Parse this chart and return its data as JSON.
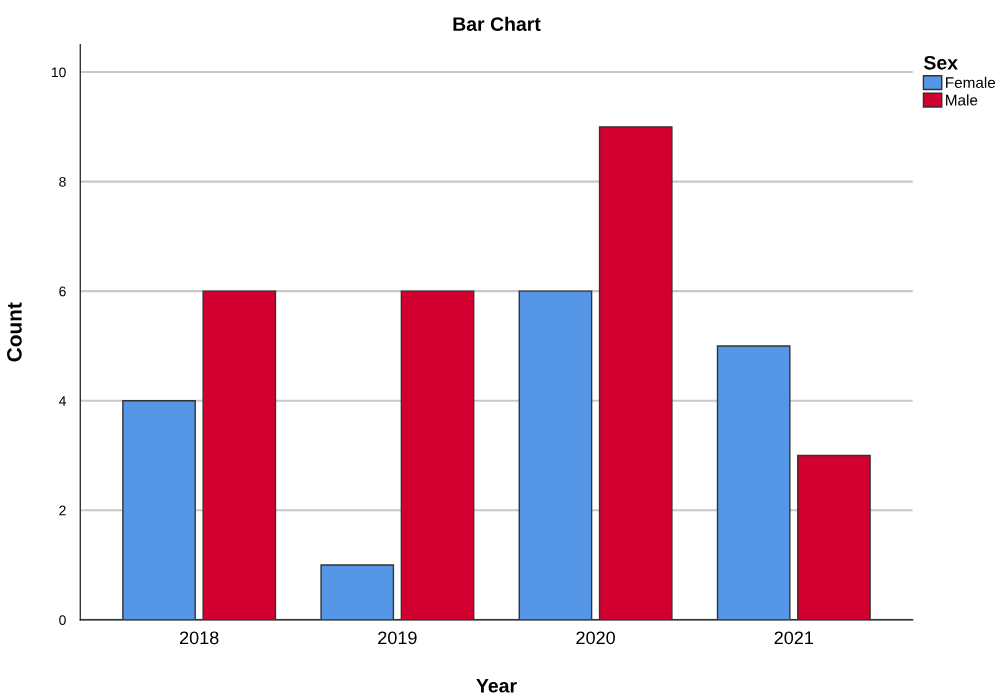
{
  "chart_data": {
    "type": "bar",
    "title": "Bar Chart",
    "xlabel": "Year",
    "ylabel": "Count",
    "legend_title": "Sex",
    "categories": [
      "2018",
      "2019",
      "2020",
      "2021"
    ],
    "series": [
      {
        "name": "Female",
        "color": "#5596e6",
        "values": [
          4,
          1,
          6,
          5
        ]
      },
      {
        "name": "Male",
        "color": "#d10031",
        "values": [
          6,
          6,
          9,
          3
        ]
      }
    ],
    "ylim": [
      0,
      10.5
    ],
    "yticks": [
      0,
      2,
      4,
      6,
      8,
      10
    ],
    "grid": "y",
    "legend": "top right"
  }
}
